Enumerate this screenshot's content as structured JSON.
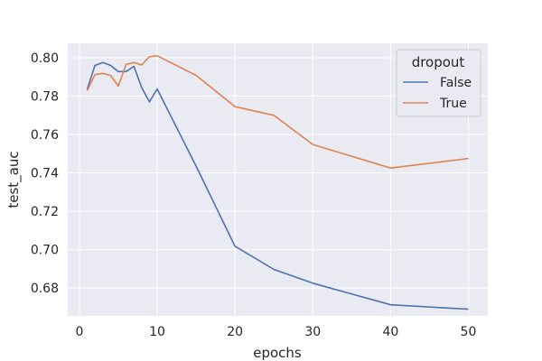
{
  "chart_data": {
    "type": "line",
    "title": "",
    "xlabel": "epochs",
    "ylabel": "test_auc",
    "xlim": [
      -1.5,
      52.5
    ],
    "ylim": [
      0.6655,
      0.8075
    ],
    "x_ticks": [
      0,
      10,
      20,
      30,
      40,
      50
    ],
    "y_ticks": [
      0.68,
      0.7,
      0.72,
      0.74,
      0.76,
      0.78,
      0.8
    ],
    "y_tick_labels": [
      "0.68",
      "0.70",
      "0.72",
      "0.74",
      "0.76",
      "0.78",
      "0.80"
    ],
    "grid": true,
    "background": "#eaeaf2",
    "legend": {
      "title": "dropout",
      "placement": "top-right"
    },
    "series": [
      {
        "name": "False",
        "color": "#4c72b0",
        "x": [
          1,
          2,
          3,
          4,
          5,
          6,
          7,
          8,
          9,
          10,
          15,
          20,
          25,
          30,
          40,
          50
        ],
        "y": [
          0.7835,
          0.796,
          0.7975,
          0.796,
          0.7928,
          0.7928,
          0.7955,
          0.7845,
          0.777,
          0.7837,
          0.7435,
          0.7018,
          0.6897,
          0.6825,
          0.6713,
          0.669
        ]
      },
      {
        "name": "True",
        "color": "#dd8452",
        "x": [
          1,
          2,
          3,
          4,
          5,
          6,
          7,
          8,
          9,
          10,
          15,
          20,
          25,
          30,
          40,
          50
        ],
        "y": [
          0.7828,
          0.7912,
          0.7918,
          0.7908,
          0.7852,
          0.7965,
          0.7975,
          0.7962,
          0.8005,
          0.801,
          0.7908,
          0.7745,
          0.77,
          0.7548,
          0.7425,
          0.7475
        ]
      }
    ]
  }
}
